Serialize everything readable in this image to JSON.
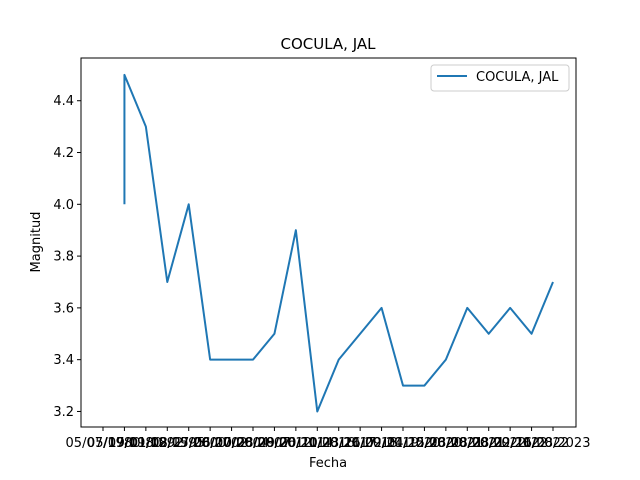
{
  "chart_data": {
    "type": "line",
    "title": "COCULA, JAL",
    "xlabel": "Fecha",
    "ylabel": "Magnitud",
    "legend_position": "top-right",
    "grid": false,
    "ylim": [
      3.14,
      4.565
    ],
    "yticks": [
      3.2,
      3.4,
      3.6,
      3.8,
      4.0,
      4.2,
      4.4
    ],
    "ytick_labels": [
      "3.2",
      "3.4",
      "3.6",
      "3.8",
      "4.0",
      "4.2",
      "4.4"
    ],
    "x_tick_labels": [
      "05/07/1980",
      "05/07/1980",
      "19/01/1992",
      "01/02/1995",
      "08/05/2000",
      "27/08/2002",
      "06/07/2004",
      "10/06/2007",
      "28/08/2012",
      "29/06/2014",
      "20/11/2016",
      "10/08/2017",
      "23/11/2018",
      "26/09/2019",
      "02/11/2020",
      "04/12/2020",
      "15/06/2021",
      "23/08/2021",
      "28/08/2022",
      "28/09/2022",
      "22/11/2022",
      "16/08/2023"
    ],
    "series": [
      {
        "name": "COCULA, JAL",
        "color": "#1f77b4",
        "values": [
          4.0,
          4.5,
          4.3,
          3.7,
          4.0,
          3.4,
          3.4,
          3.4,
          3.5,
          3.9,
          3.2,
          3.4,
          3.5,
          3.6,
          3.3,
          3.3,
          3.4,
          3.6,
          3.5,
          3.6,
          3.5,
          3.7
        ]
      }
    ]
  }
}
